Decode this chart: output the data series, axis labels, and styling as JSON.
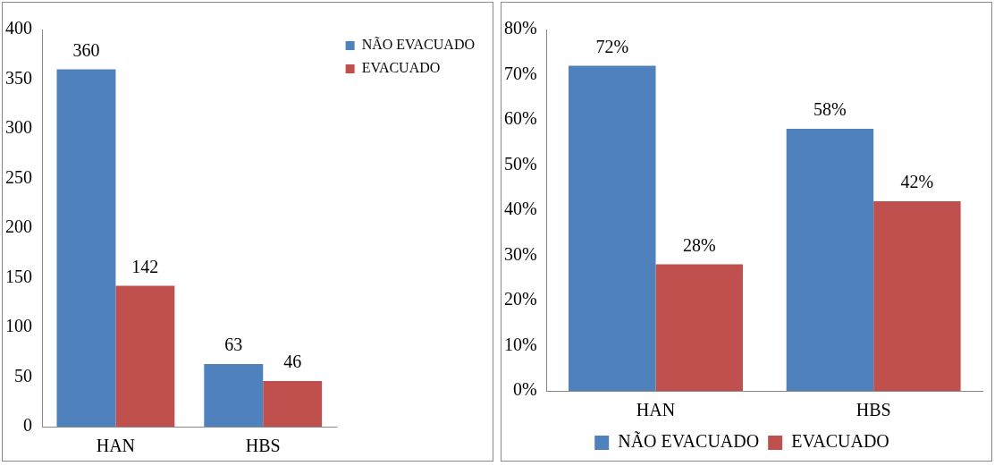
{
  "chart_data": [
    {
      "type": "bar",
      "categories": [
        "HAN",
        "HBS"
      ],
      "series": [
        {
          "name": "NÃO EVACUADO",
          "color": "#4f81bd",
          "values": [
            360,
            63
          ]
        },
        {
          "name": "EVACUADO",
          "color": "#c0504d",
          "values": [
            142,
            46
          ]
        }
      ],
      "ylim": [
        0,
        400
      ],
      "yticks": [
        0,
        50,
        100,
        150,
        200,
        250,
        300,
        350,
        400
      ],
      "data_labels": true,
      "legend": "top right"
    },
    {
      "type": "bar",
      "categories": [
        "HAN",
        "HBS"
      ],
      "series": [
        {
          "name": "NÃO EVACUADO",
          "color": "#4f81bd",
          "values": [
            72,
            58
          ],
          "value_labels": [
            "72%",
            "58%"
          ]
        },
        {
          "name": "EVACUADO",
          "color": "#c0504d",
          "values": [
            28,
            42
          ],
          "value_labels": [
            "28%",
            "42%"
          ]
        }
      ],
      "ylim": [
        0,
        80
      ],
      "yticks": [
        {
          "value": 0,
          "label": "0%"
        },
        {
          "value": 10,
          "label": "10%"
        },
        {
          "value": 20,
          "label": "20%"
        },
        {
          "value": 30,
          "label": "30%"
        },
        {
          "value": 40,
          "label": "40%"
        },
        {
          "value": 50,
          "label": "50%"
        },
        {
          "value": 60,
          "label": "60%"
        },
        {
          "value": 70,
          "label": "70%"
        },
        {
          "value": 80,
          "label": "80%"
        }
      ],
      "legend": "bottom"
    }
  ]
}
